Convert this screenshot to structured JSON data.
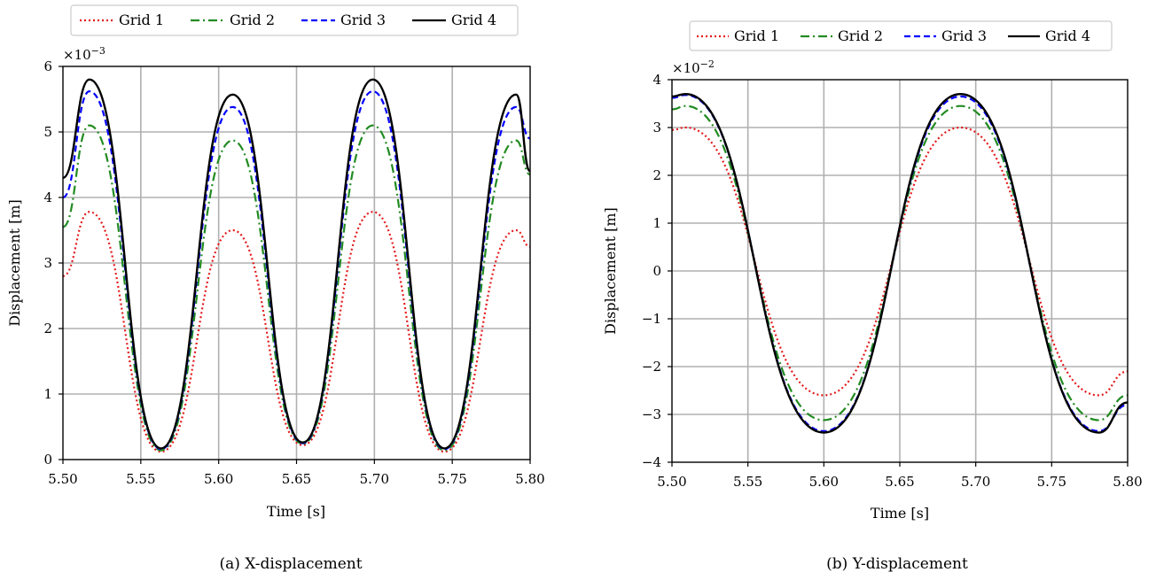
{
  "chart_data": [
    {
      "type": "line",
      "caption": "(a) X-displacement",
      "xlabel": "Time [s]",
      "ylabel": "Displacement [m]",
      "scale_label": "×10",
      "scale_exponent": "−3",
      "xlim": [
        5.5,
        5.8
      ],
      "ylim": [
        0,
        6
      ],
      "xticks": [
        "5.50",
        "5.55",
        "5.60",
        "5.65",
        "5.70",
        "5.75",
        "5.80"
      ],
      "yticks": [
        "0",
        "1",
        "2",
        "3",
        "4",
        "5",
        "6"
      ],
      "grid": true,
      "legend_position": "top",
      "x": [
        5.5,
        5.517,
        5.563,
        5.609,
        5.654,
        5.699,
        5.745,
        5.791,
        5.8
      ],
      "series": [
        {
          "name": "Grid 1",
          "color": "#e41a1c",
          "style": "dotted",
          "values": [
            2.8,
            3.78,
            0.12,
            3.5,
            0.22,
            3.78,
            0.12,
            3.5,
            3.25
          ]
        },
        {
          "name": "Grid 2",
          "color": "#228b22",
          "style": "dashdot",
          "values": [
            3.55,
            5.1,
            0.14,
            4.87,
            0.24,
            5.1,
            0.14,
            4.87,
            4.35
          ]
        },
        {
          "name": "Grid 3",
          "color": "#0000ff",
          "style": "dashed",
          "values": [
            4.0,
            5.62,
            0.16,
            5.38,
            0.25,
            5.62,
            0.16,
            5.38,
            4.9
          ]
        },
        {
          "name": "Grid 4",
          "color": "#000000",
          "style": "solid",
          "values": [
            4.3,
            5.8,
            0.17,
            5.57,
            0.26,
            5.8,
            0.17,
            5.57,
            4.4
          ]
        }
      ]
    },
    {
      "type": "line",
      "caption": "(b) Y-displacement",
      "xlabel": "Time [s]",
      "ylabel": "Displacement [m]",
      "scale_label": "×10",
      "scale_exponent": "−2",
      "xlim": [
        5.5,
        5.8
      ],
      "ylim": [
        -4,
        4
      ],
      "xticks": [
        "5.50",
        "5.55",
        "5.60",
        "5.65",
        "5.70",
        "5.75",
        "5.80"
      ],
      "yticks": [
        "−4",
        "−3",
        "−2",
        "−1",
        "0",
        "1",
        "2",
        "3",
        "4"
      ],
      "grid": true,
      "legend_position": "top",
      "x": [
        5.5,
        5.509,
        5.6,
        5.69,
        5.781,
        5.8
      ],
      "series": [
        {
          "name": "Grid 1",
          "color": "#e41a1c",
          "style": "dotted",
          "values": [
            2.95,
            3.0,
            -2.6,
            3.0,
            -2.6,
            -2.1
          ]
        },
        {
          "name": "Grid 2",
          "color": "#228b22",
          "style": "dashdot",
          "values": [
            3.38,
            3.45,
            -3.12,
            3.45,
            -3.12,
            -2.6
          ]
        },
        {
          "name": "Grid 3",
          "color": "#0000ff",
          "style": "dashed",
          "values": [
            3.62,
            3.68,
            -3.35,
            3.65,
            -3.35,
            -2.8
          ]
        },
        {
          "name": "Grid 4",
          "color": "#000000",
          "style": "solid",
          "values": [
            3.65,
            3.7,
            -3.38,
            3.7,
            -3.38,
            -2.75
          ]
        }
      ]
    }
  ]
}
